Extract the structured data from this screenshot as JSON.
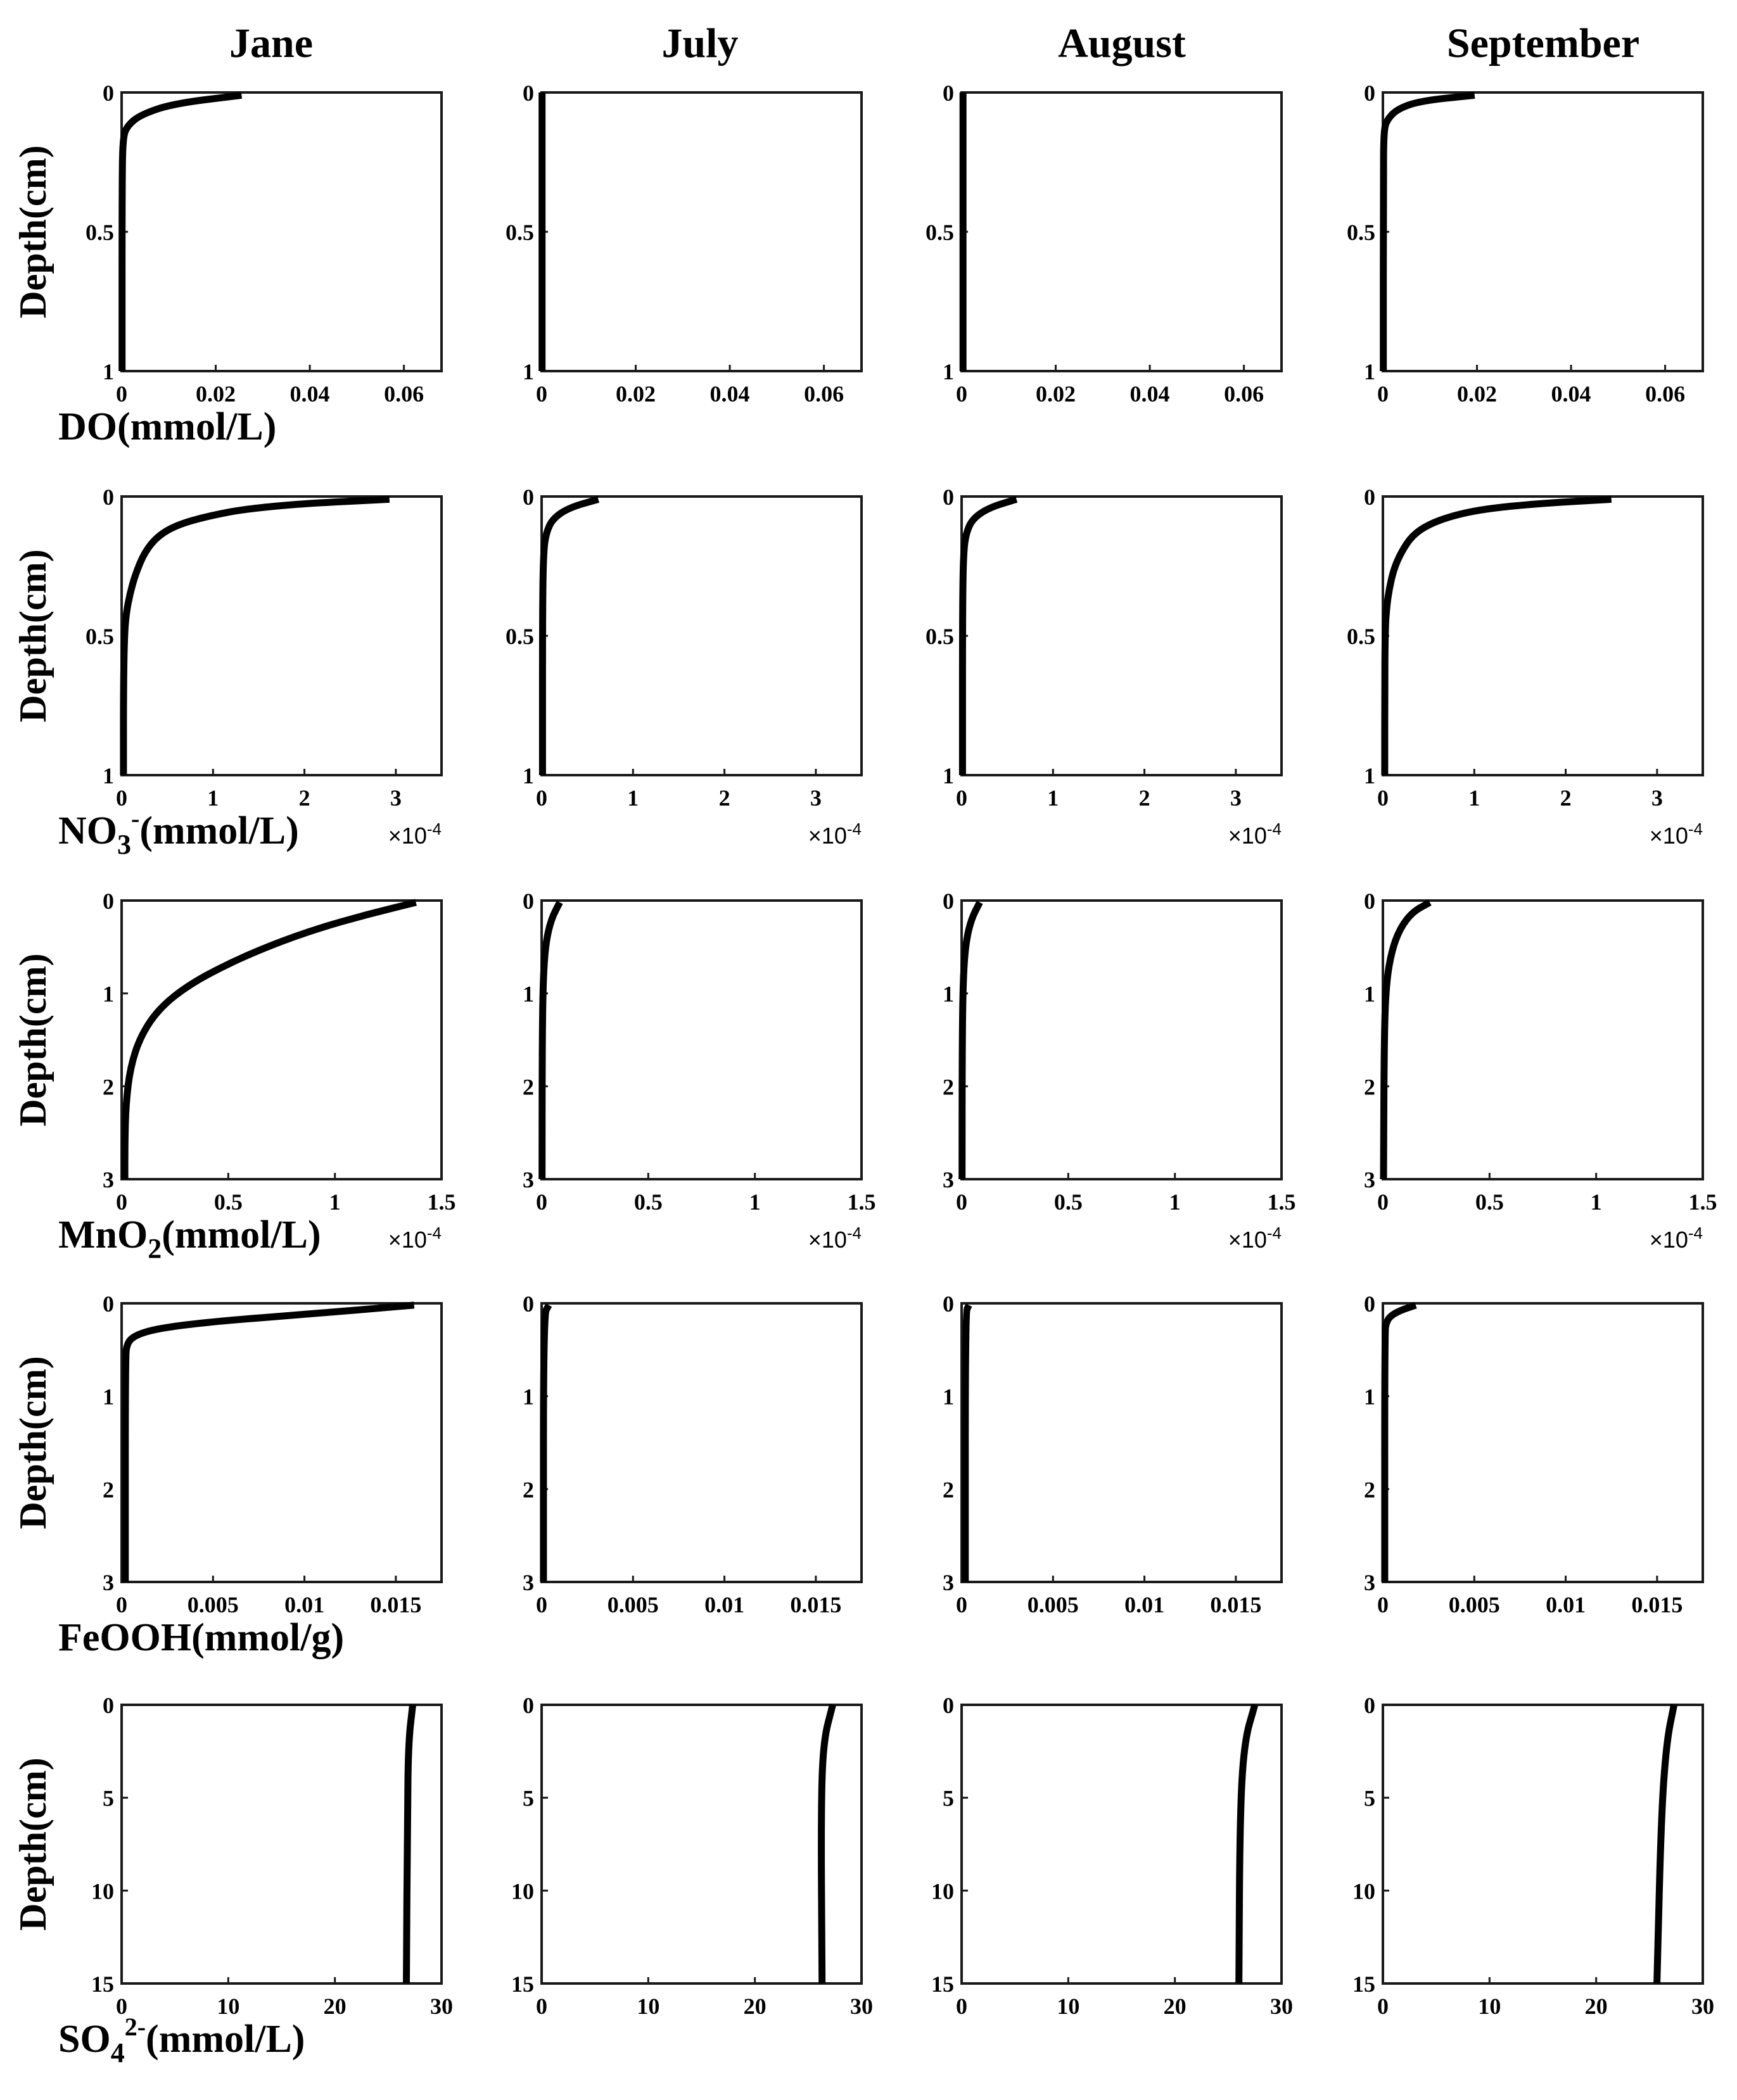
{
  "columns": [
    "Jane",
    "July",
    "August",
    "September"
  ],
  "rows": [
    {
      "key": "do",
      "ylabel": "Depth(cm)",
      "xlabel": {
        "main": "DO(mmol/L)",
        "sub": "",
        "sup": "",
        "tail": ""
      },
      "xticks": [
        "0",
        "0.02",
        "0.04",
        "0.06"
      ],
      "yticks": [
        "0",
        "0.5",
        "1"
      ],
      "multiplier": ""
    },
    {
      "key": "no3",
      "ylabel": "Depth(cm)",
      "xlabel": {
        "main": "NO",
        "sub": "3",
        "sup": "-",
        "tail": "(mmol/L)"
      },
      "xticks": [
        "0",
        "1",
        "2",
        "3"
      ],
      "yticks": [
        "0",
        "0.5",
        "1"
      ],
      "multiplier": "×10",
      "multiplier_exp": "-4"
    },
    {
      "key": "mno2",
      "ylabel": "Depth(cm)",
      "xlabel": {
        "main": "MnO",
        "sub": "2",
        "sup": "",
        "tail": "(mmol/L)"
      },
      "xticks": [
        "0",
        "0.5",
        "1",
        "1.5"
      ],
      "yticks": [
        "0",
        "1",
        "2",
        "3"
      ],
      "multiplier": "×10",
      "multiplier_exp": "-4"
    },
    {
      "key": "feooh",
      "ylabel": "Depth(cm)",
      "xlabel": {
        "main": "FeOOH(mmol/g)",
        "sub": "",
        "sup": "",
        "tail": ""
      },
      "xticks": [
        "0",
        "0.005",
        "0.01",
        "0.015"
      ],
      "yticks": [
        "0",
        "1",
        "2",
        "3"
      ],
      "multiplier": ""
    },
    {
      "key": "so4",
      "ylabel": "Depth(cm)",
      "xlabel": {
        "main": "SO",
        "sub": "4",
        "sup": "2-",
        "tail": "(mmol/L)"
      },
      "xticks": [
        "0",
        "10",
        "20",
        "30"
      ],
      "yticks": [
        "0",
        "5",
        "10",
        "15"
      ],
      "multiplier": ""
    }
  ],
  "chart_data": [
    {
      "type": "line",
      "row": "DO",
      "column": "Jane",
      "xlabel": "DO(mmol/L)",
      "ylabel": "Depth(cm)",
      "xlim": [
        0,
        0.068
      ],
      "ylim": [
        1,
        0
      ],
      "y_reversed": true,
      "x": [
        0.0255,
        0.011,
        0.004,
        0.0012,
        0.0003,
        0.0001,
        0.0001
      ],
      "y": [
        0.01,
        0.04,
        0.08,
        0.12,
        0.16,
        0.3,
        1
      ]
    },
    {
      "type": "line",
      "row": "DO",
      "column": "July",
      "xlabel": "DO(mmol/L)",
      "ylabel": "Depth(cm)",
      "xlim": [
        0,
        0.068
      ],
      "ylim": [
        1,
        0
      ],
      "y_reversed": true,
      "x": [
        0.0001,
        0.0001
      ],
      "y": [
        0,
        1
      ]
    },
    {
      "type": "line",
      "row": "DO",
      "column": "August",
      "xlabel": "DO(mmol/L)",
      "ylabel": "Depth(cm)",
      "xlim": [
        0,
        0.068
      ],
      "ylim": [
        1,
        0
      ],
      "y_reversed": true,
      "x": [
        0.0003,
        0.0003
      ],
      "y": [
        0,
        1
      ]
    },
    {
      "type": "line",
      "row": "DO",
      "column": "September",
      "xlabel": "DO(mmol/L)",
      "ylabel": "Depth(cm)",
      "xlim": [
        0,
        0.068
      ],
      "ylim": [
        1,
        0
      ],
      "y_reversed": true,
      "x": [
        0.0195,
        0.008,
        0.003,
        0.0008,
        0.0002,
        0.0001,
        0.0001
      ],
      "y": [
        0.01,
        0.03,
        0.06,
        0.1,
        0.14,
        0.3,
        1
      ]
    },
    {
      "type": "line",
      "row": "NO3-",
      "column": "Jane",
      "xlabel": "NO3-(mmol/L)",
      "ylabel": "Depth(cm)",
      "xlim": [
        0,
        3.5
      ],
      "ylim": [
        1,
        0
      ],
      "y_reversed": true,
      "x_multiplier": "x10^-4",
      "x": [
        2.93,
        2.0,
        1.35,
        0.95,
        0.62,
        0.4,
        0.25,
        0.15,
        0.09,
        0.05,
        0.03,
        0.02,
        0.02
      ],
      "y": [
        0.01,
        0.025,
        0.045,
        0.07,
        0.1,
        0.14,
        0.2,
        0.28,
        0.35,
        0.42,
        0.5,
        0.7,
        1
      ]
    },
    {
      "type": "line",
      "row": "NO3-",
      "column": "July",
      "xlabel": "NO3-(mmol/L)",
      "ylabel": "Depth(cm)",
      "xlim": [
        0,
        3.5
      ],
      "ylim": [
        1,
        0
      ],
      "y_reversed": true,
      "x_multiplier": "x10^-4",
      "x": [
        0.62,
        0.3,
        0.12,
        0.05,
        0.02,
        0.01,
        0.01
      ],
      "y": [
        0.01,
        0.04,
        0.08,
        0.13,
        0.2,
        0.4,
        1
      ]
    },
    {
      "type": "line",
      "row": "NO3-",
      "column": "August",
      "xlabel": "NO3-(mmol/L)",
      "ylabel": "Depth(cm)",
      "xlim": [
        0,
        3.5
      ],
      "ylim": [
        1,
        0
      ],
      "y_reversed": true,
      "x_multiplier": "x10^-4",
      "x": [
        0.6,
        0.3,
        0.12,
        0.05,
        0.02,
        0.01,
        0.01
      ],
      "y": [
        0.01,
        0.04,
        0.08,
        0.13,
        0.2,
        0.4,
        1
      ]
    },
    {
      "type": "line",
      "row": "NO3-",
      "column": "September",
      "xlabel": "NO3-(mmol/L)",
      "ylabel": "Depth(cm)",
      "xlim": [
        0,
        3.5
      ],
      "ylim": [
        1,
        0
      ],
      "y_reversed": true,
      "x_multiplier": "x10^-4",
      "x": [
        2.5,
        1.7,
        1.1,
        0.75,
        0.5,
        0.32,
        0.2,
        0.12,
        0.07,
        0.04,
        0.025,
        0.02,
        0.02
      ],
      "y": [
        0.01,
        0.025,
        0.045,
        0.07,
        0.1,
        0.14,
        0.2,
        0.26,
        0.33,
        0.4,
        0.48,
        0.7,
        1
      ]
    },
    {
      "type": "line",
      "row": "MnO2",
      "column": "Jane",
      "xlabel": "MnO2(mmol/L)",
      "ylabel": "Depth(cm)",
      "xlim": [
        0,
        1.5
      ],
      "ylim": [
        3,
        0
      ],
      "y_reversed": true,
      "x_multiplier": "x10^-4",
      "x": [
        1.38,
        1.15,
        0.92,
        0.7,
        0.5,
        0.32,
        0.18,
        0.09,
        0.04,
        0.02,
        0.015,
        0.015
      ],
      "y": [
        0.02,
        0.15,
        0.3,
        0.48,
        0.68,
        0.9,
        1.15,
        1.45,
        1.8,
        2.2,
        2.6,
        3
      ]
    },
    {
      "type": "line",
      "row": "MnO2",
      "column": "July",
      "xlabel": "MnO2(mmol/L)",
      "ylabel": "Depth(cm)",
      "xlim": [
        0,
        1.5
      ],
      "ylim": [
        3,
        0
      ],
      "y_reversed": true,
      "x_multiplier": "x10^-4",
      "x": [
        0.085,
        0.045,
        0.02,
        0.008,
        0.003,
        0.002
      ],
      "y": [
        0.02,
        0.2,
        0.45,
        0.8,
        1.4,
        3
      ]
    },
    {
      "type": "line",
      "row": "MnO2",
      "column": "August",
      "xlabel": "MnO2(mmol/L)",
      "ylabel": "Depth(cm)",
      "xlim": [
        0,
        1.5
      ],
      "ylim": [
        3,
        0
      ],
      "y_reversed": true,
      "x_multiplier": "x10^-4",
      "x": [
        0.085,
        0.045,
        0.02,
        0.008,
        0.003,
        0.002
      ],
      "y": [
        0.02,
        0.2,
        0.45,
        0.8,
        1.4,
        3
      ]
    },
    {
      "type": "line",
      "row": "MnO2",
      "column": "September",
      "xlabel": "MnO2(mmol/L)",
      "ylabel": "Depth(cm)",
      "xlim": [
        0,
        1.5
      ],
      "ylim": [
        3,
        0
      ],
      "y_reversed": true,
      "x_multiplier": "x10^-4",
      "x": [
        0.22,
        0.14,
        0.08,
        0.04,
        0.015,
        0.006,
        0.003
      ],
      "y": [
        0.02,
        0.12,
        0.3,
        0.55,
        0.9,
        1.5,
        3
      ]
    },
    {
      "type": "line",
      "row": "FeOOH",
      "column": "Jane",
      "xlabel": "FeOOH(mmol/g)",
      "ylabel": "Depth(cm)",
      "xlim": [
        0,
        0.0175
      ],
      "ylim": [
        3,
        0
      ],
      "y_reversed": true,
      "x": [
        0.016,
        0.01,
        0.006,
        0.0035,
        0.0018,
        0.0008,
        0.0003,
        0.0002,
        0.0002
      ],
      "y": [
        0.02,
        0.12,
        0.18,
        0.23,
        0.28,
        0.34,
        0.42,
        0.6,
        3
      ]
    },
    {
      "type": "line",
      "row": "FeOOH",
      "column": "July",
      "xlabel": "FeOOH(mmol/g)",
      "ylabel": "Depth(cm)",
      "xlim": [
        0,
        0.0175
      ],
      "ylim": [
        3,
        0
      ],
      "y_reversed": true,
      "x": [
        0.0004,
        0.0001,
        0.0001
      ],
      "y": [
        0.02,
        0.12,
        3
      ]
    },
    {
      "type": "line",
      "row": "FeOOH",
      "column": "August",
      "xlabel": "FeOOH(mmol/g)",
      "ylabel": "Depth(cm)",
      "xlim": [
        0,
        0.0175
      ],
      "ylim": [
        3,
        0
      ],
      "y_reversed": true,
      "x": [
        0.0004,
        0.0002,
        0.0002
      ],
      "y": [
        0.02,
        0.1,
        3
      ]
    },
    {
      "type": "line",
      "row": "FeOOH",
      "column": "September",
      "xlabel": "FeOOH(mmol/g)",
      "ylabel": "Depth(cm)",
      "xlim": [
        0,
        0.0175
      ],
      "ylim": [
        3,
        0
      ],
      "y_reversed": true,
      "x": [
        0.0018,
        0.0009,
        0.0004,
        0.0002,
        0.0001,
        0.0001
      ],
      "y": [
        0.02,
        0.08,
        0.14,
        0.2,
        0.3,
        3
      ]
    },
    {
      "type": "line",
      "row": "SO4 2-",
      "column": "Jane",
      "xlabel": "SO42-(mmol/L)",
      "ylabel": "Depth(cm)",
      "xlim": [
        0,
        30
      ],
      "ylim": [
        15,
        0
      ],
      "y_reversed": true,
      "x": [
        27.3,
        26.9,
        26.8,
        26.7
      ],
      "y": [
        0,
        2,
        6,
        15
      ]
    },
    {
      "type": "line",
      "row": "SO4 2-",
      "column": "July",
      "xlabel": "SO42-(mmol/L)",
      "ylabel": "Depth(cm)",
      "xlim": [
        0,
        30
      ],
      "ylim": [
        15,
        0
      ],
      "y_reversed": true,
      "x": [
        27.3,
        26.4,
        26.2,
        26.3
      ],
      "y": [
        0,
        2,
        6,
        15
      ]
    },
    {
      "type": "line",
      "row": "SO4 2-",
      "column": "August",
      "xlabel": "SO42-(mmol/L)",
      "ylabel": "Depth(cm)",
      "xlim": [
        0,
        30
      ],
      "ylim": [
        15,
        0
      ],
      "y_reversed": true,
      "x": [
        27.5,
        26.5,
        26.1,
        26.0
      ],
      "y": [
        0,
        2,
        6,
        15
      ]
    },
    {
      "type": "line",
      "row": "SO4 2-",
      "column": "September",
      "xlabel": "SO42-(mmol/L)",
      "ylabel": "Depth(cm)",
      "xlim": [
        0,
        30
      ],
      "ylim": [
        15,
        0
      ],
      "y_reversed": true,
      "x": [
        27.3,
        26.6,
        26.1,
        25.7
      ],
      "y": [
        0,
        2,
        6,
        15
      ]
    }
  ]
}
